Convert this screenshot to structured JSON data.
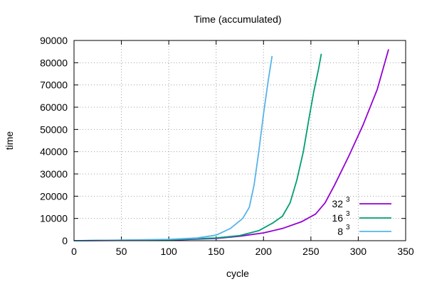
{
  "chart_data": {
    "type": "line",
    "title": "Time (accumulated)",
    "xlabel": "cycle",
    "ylabel": "time",
    "xlim": [
      0,
      350
    ],
    "ylim": [
      0,
      90000
    ],
    "xticks": [
      0,
      50,
      100,
      150,
      200,
      250,
      300,
      350
    ],
    "yticks": [
      0,
      10000,
      20000,
      30000,
      40000,
      50000,
      60000,
      70000,
      80000,
      90000
    ],
    "grid": true,
    "legend_position": "bottom-right",
    "series": [
      {
        "name": "32",
        "superscript": "3",
        "color": "#9400d3",
        "x": [
          0,
          100,
          150,
          175,
          200,
          220,
          240,
          255,
          265,
          275,
          290,
          305,
          320,
          332
        ],
        "y": [
          0,
          300,
          1000,
          2000,
          3500,
          5500,
          8500,
          12000,
          17000,
          25000,
          38000,
          52000,
          68000,
          86000
        ]
      },
      {
        "name": "16",
        "superscript": "3",
        "color": "#009e73",
        "x": [
          0,
          100,
          150,
          175,
          195,
          210,
          220,
          228,
          235,
          242,
          248,
          253,
          258,
          261
        ],
        "y": [
          0,
          400,
          1200,
          2300,
          4500,
          8000,
          11000,
          17000,
          27000,
          40000,
          55000,
          67000,
          77000,
          84000
        ]
      },
      {
        "name": "8",
        "superscript": "3",
        "color": "#56b4e9",
        "x": [
          0,
          50,
          100,
          130,
          150,
          165,
          178,
          185,
          190,
          195,
          200,
          205,
          209
        ],
        "y": [
          0,
          300,
          600,
          1200,
          2500,
          5500,
          10000,
          15000,
          25000,
          40000,
          57000,
          72000,
          83000
        ]
      }
    ]
  }
}
